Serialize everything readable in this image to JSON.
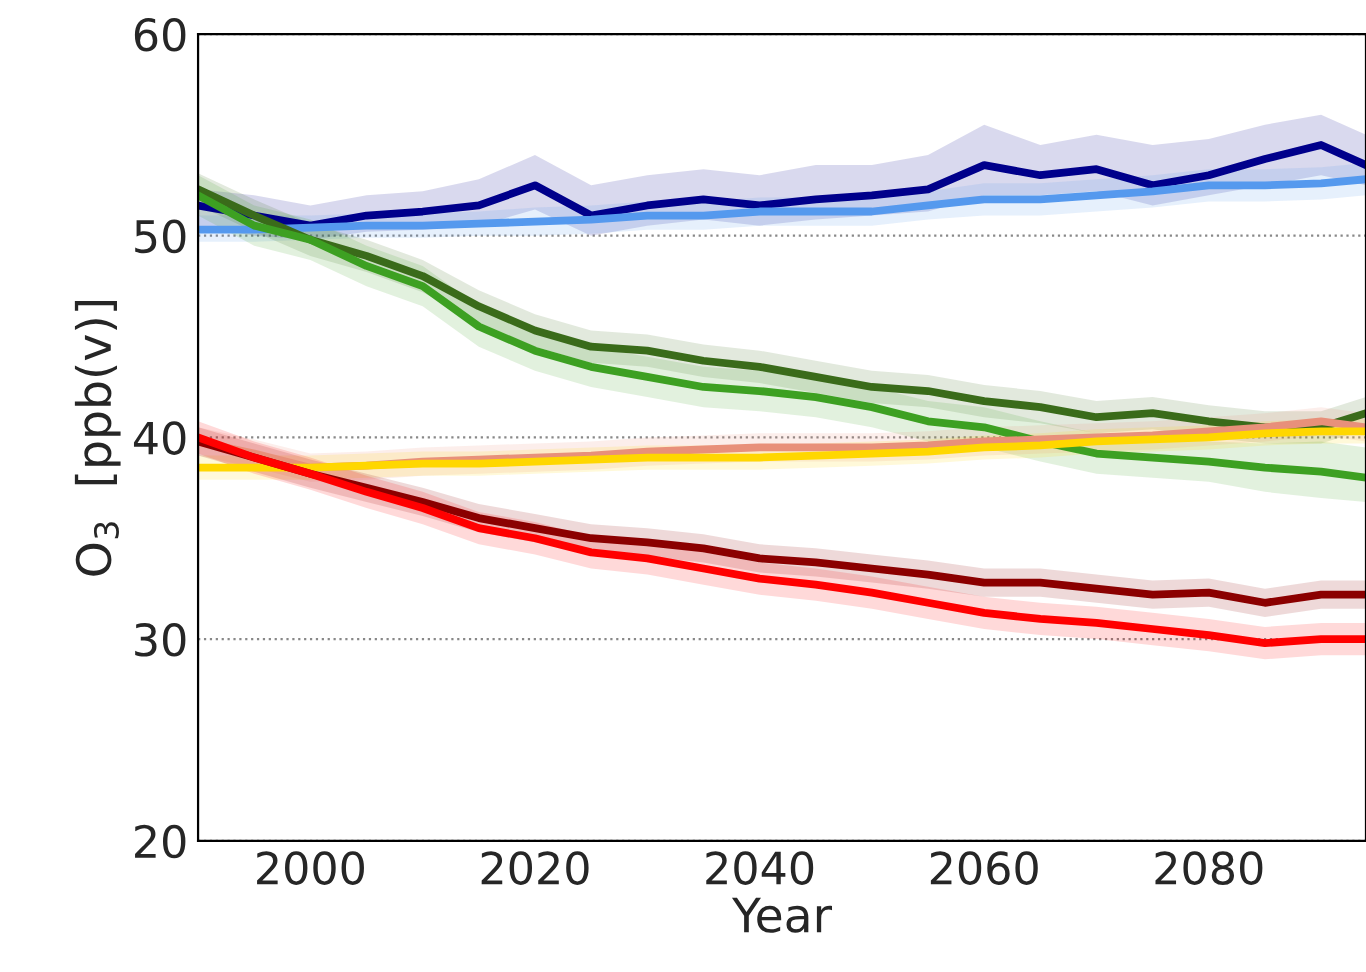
{
  "chart_data": {
    "type": "line",
    "xlabel": "Year",
    "ylabel": "O$_{3}$  [ppb(v)]",
    "x": [
      1990,
      1995,
      2000,
      2005,
      2010,
      2015,
      2020,
      2025,
      2030,
      2035,
      2040,
      2045,
      2050,
      2055,
      2060,
      2065,
      2070,
      2075,
      2080,
      2085,
      2090,
      2094
    ],
    "xlim": [
      1990,
      2094
    ],
    "xticks": [
      2000,
      2020,
      2040,
      2060,
      2080
    ],
    "ylim": [
      20,
      60
    ],
    "yticks": [
      20,
      30,
      40,
      50,
      60
    ],
    "grid": "y",
    "legend": false,
    "line_style": "solid",
    "marker": "none",
    "series": [
      {
        "color": "#00008b",
        "values": [
          51.5,
          51,
          50.5,
          51,
          51.2,
          51.5,
          52.5,
          51,
          51.5,
          51.8,
          51.5,
          51.8,
          52,
          52.3,
          53.5,
          53,
          53.3,
          52.5,
          53,
          53.8,
          54.5,
          53.5
        ],
        "lower": [
          50.5,
          50,
          49.8,
          50.2,
          50.3,
          50.5,
          51.3,
          50,
          50.5,
          50.8,
          50.5,
          50.8,
          51,
          51.2,
          52,
          52,
          52.2,
          51.5,
          52,
          52.5,
          53,
          52.5
        ],
        "upper": [
          52.3,
          52,
          51.5,
          52,
          52.2,
          52.8,
          54,
          52.5,
          53,
          53.3,
          53,
          53.5,
          53.5,
          54,
          55.5,
          54.5,
          55,
          54.5,
          54.8,
          55.5,
          56,
          55
        ]
      },
      {
        "color": "#5599ee",
        "values": [
          50.3,
          50.3,
          50.4,
          50.5,
          50.5,
          50.6,
          50.7,
          50.8,
          51,
          51,
          51.2,
          51.2,
          51.2,
          51.5,
          51.8,
          51.8,
          52,
          52.2,
          52.5,
          52.5,
          52.6,
          52.8
        ],
        "lower": [
          49.7,
          49.7,
          49.8,
          49.9,
          49.9,
          50,
          50,
          50.1,
          50.3,
          50.3,
          50.5,
          50.5,
          50.5,
          50.8,
          51,
          51,
          51.2,
          51.4,
          51.7,
          51.7,
          51.8,
          52
        ],
        "upper": [
          51,
          51,
          51,
          51.1,
          51.1,
          51.2,
          51.4,
          51.5,
          51.7,
          51.7,
          51.9,
          51.9,
          52,
          52.2,
          52.6,
          52.6,
          52.8,
          53,
          53.3,
          53.3,
          53.4,
          53.6
        ]
      },
      {
        "color": "#3a6b1a",
        "values": [
          52.3,
          51,
          49.8,
          49,
          48,
          46.5,
          45.3,
          44.5,
          44.3,
          43.8,
          43.5,
          43,
          42.5,
          42.3,
          41.8,
          41.5,
          41,
          41.2,
          40.8,
          40.5,
          40.5,
          41.2
        ],
        "lower": [
          51.5,
          50.2,
          49,
          48.2,
          47.2,
          45.7,
          44.5,
          43.7,
          43.5,
          43,
          42.7,
          42.2,
          41.7,
          41.5,
          41,
          40.7,
          40.2,
          40.4,
          40,
          39.7,
          39.7,
          40.4
        ],
        "upper": [
          53.1,
          51.8,
          50.6,
          49.8,
          48.8,
          47.3,
          46.1,
          45.3,
          45.1,
          44.6,
          44.3,
          43.8,
          43.3,
          43.1,
          42.6,
          42.3,
          41.8,
          42,
          41.6,
          41.3,
          41.3,
          42
        ]
      },
      {
        "color": "#3da022",
        "values": [
          52,
          50.5,
          49.8,
          48.5,
          47.5,
          45.5,
          44.3,
          43.5,
          43,
          42.5,
          42.3,
          42,
          41.5,
          40.8,
          40.5,
          39.8,
          39.2,
          39,
          38.8,
          38.5,
          38.3,
          38
        ],
        "lower": [
          51,
          49.5,
          48.8,
          47.5,
          46.5,
          44.5,
          43.3,
          42.5,
          42,
          41.5,
          41.3,
          41,
          40.5,
          39.8,
          39.5,
          38.8,
          38.2,
          38,
          37.8,
          37.3,
          37,
          36.8
        ],
        "upper": [
          53,
          51.5,
          50.8,
          49.5,
          48.5,
          46.5,
          45.3,
          44.5,
          44,
          43.5,
          43.3,
          43,
          42.5,
          41.8,
          41.5,
          40.8,
          40.2,
          40,
          39.8,
          39.7,
          39.8,
          39.5
        ]
      },
      {
        "color": "#e8907a",
        "values": [
          39.8,
          39.2,
          38.5,
          38.6,
          38.8,
          38.9,
          39,
          39.1,
          39.3,
          39.4,
          39.5,
          39.5,
          39.5,
          39.6,
          39.8,
          39.9,
          40,
          40.1,
          40.3,
          40.5,
          40.8,
          40.5
        ],
        "lower": [
          39.1,
          38.5,
          37.8,
          37.9,
          38.1,
          38.2,
          38.3,
          38.4,
          38.6,
          38.7,
          38.8,
          38.8,
          38.8,
          38.9,
          39.1,
          39.2,
          39.3,
          39.4,
          39.6,
          39.8,
          40.1,
          39.8
        ],
        "upper": [
          40.5,
          39.9,
          39.2,
          39.3,
          39.5,
          39.6,
          39.7,
          39.8,
          40,
          40.1,
          40.2,
          40.2,
          40.2,
          40.3,
          40.5,
          40.6,
          40.7,
          40.8,
          41,
          41.2,
          41.5,
          41.2
        ]
      },
      {
        "color": "#ffd700",
        "values": [
          38.5,
          38.5,
          38.5,
          38.6,
          38.7,
          38.7,
          38.8,
          38.9,
          39,
          39,
          39,
          39.1,
          39.2,
          39.3,
          39.5,
          39.6,
          39.8,
          39.9,
          40,
          40.2,
          40.3,
          40.3
        ],
        "lower": [
          37.9,
          37.9,
          37.9,
          38,
          38.1,
          38.1,
          38.2,
          38.3,
          38.4,
          38.4,
          38.4,
          38.5,
          38.6,
          38.7,
          38.9,
          39,
          39.2,
          39.3,
          39.4,
          39.6,
          39.7,
          39.7
        ],
        "upper": [
          39.1,
          39.1,
          39.1,
          39.2,
          39.3,
          39.3,
          39.4,
          39.5,
          39.6,
          39.6,
          39.6,
          39.7,
          39.8,
          39.9,
          40.1,
          40.2,
          40.4,
          40.5,
          40.6,
          40.8,
          40.9,
          40.9
        ]
      },
      {
        "color": "#8b0000",
        "values": [
          39.8,
          39,
          38.2,
          37.5,
          36.8,
          36,
          35.5,
          35,
          34.8,
          34.5,
          34,
          33.8,
          33.5,
          33.2,
          32.8,
          32.8,
          32.5,
          32.2,
          32.3,
          31.8,
          32.2,
          32.2
        ],
        "lower": [
          39.1,
          38.3,
          37.5,
          36.8,
          36.1,
          35.3,
          34.8,
          34.3,
          34.1,
          33.8,
          33.3,
          33.1,
          32.8,
          32.5,
          32.1,
          32.1,
          31.8,
          31.5,
          31.6,
          31.1,
          31.5,
          31.5
        ],
        "upper": [
          40.5,
          39.7,
          38.9,
          38.2,
          37.5,
          36.7,
          36.2,
          35.7,
          35.5,
          35.2,
          34.7,
          34.5,
          34.2,
          33.9,
          33.5,
          33.5,
          33.2,
          32.9,
          33,
          32.5,
          32.9,
          32.9
        ]
      },
      {
        "color": "#ff0000",
        "values": [
          40,
          39,
          38.2,
          37.3,
          36.5,
          35.5,
          35,
          34.3,
          34,
          33.5,
          33,
          32.7,
          32.3,
          31.8,
          31.3,
          31,
          30.8,
          30.5,
          30.2,
          29.8,
          30,
          30
        ],
        "lower": [
          39.2,
          38.2,
          37.4,
          36.5,
          35.7,
          34.7,
          34.2,
          33.5,
          33.2,
          32.7,
          32.2,
          31.9,
          31.5,
          31,
          30.5,
          30.2,
          30,
          29.7,
          29.4,
          29,
          29.2,
          29.2
        ],
        "upper": [
          40.8,
          39.8,
          39,
          38.1,
          37.3,
          36.3,
          35.8,
          35.1,
          34.8,
          34.3,
          33.8,
          33.5,
          33.1,
          32.6,
          32.1,
          31.8,
          31.6,
          31.3,
          31,
          30.6,
          30.8,
          30.8
        ]
      }
    ]
  }
}
